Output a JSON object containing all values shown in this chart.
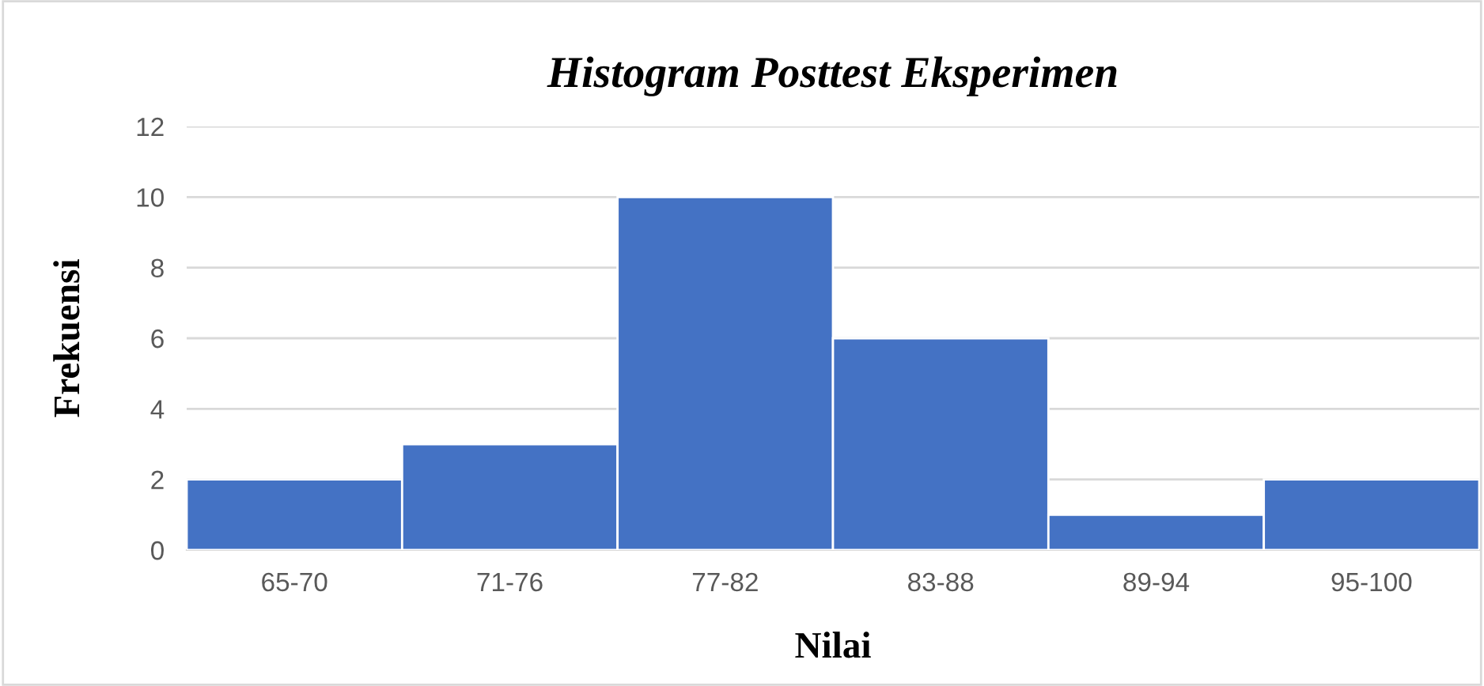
{
  "chart_data": {
    "type": "bar",
    "title": "Histogram Posttest Eksperimen",
    "xlabel": "Nilai",
    "ylabel": "Frekuensi",
    "categories": [
      "65-70",
      "71-76",
      "77-82",
      "83-88",
      "89-94",
      "95-100"
    ],
    "values": [
      2,
      3,
      10,
      6,
      1,
      2
    ],
    "color": "#4472c4",
    "ylim": [
      0,
      12
    ],
    "yticks": [
      0,
      2,
      4,
      6,
      8,
      10,
      12
    ],
    "grid": "y"
  }
}
